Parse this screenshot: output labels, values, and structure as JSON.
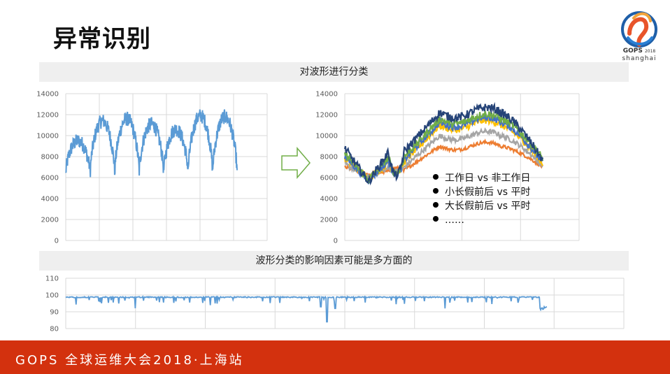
{
  "slide": {
    "title": "异常识别",
    "logo": {
      "brand": "GOPS",
      "year": "2018",
      "city": "shanghai"
    },
    "band_top": "对波形进行分类",
    "band_bottom": "波形分类的影响因素可能是多方面的",
    "footer": "GOPS 全球运维大会2018·上海站",
    "colors": {
      "footer_bg": "#d3310e",
      "series_blue": "#5b9bd5",
      "arrow": "#70ad47"
    }
  },
  "chart_data": [
    {
      "type": "line",
      "title": "",
      "xlabel": "",
      "ylabel": "",
      "ylim": [
        0,
        14000
      ],
      "yticks": [
        "0",
        "2000",
        "4000",
        "6000",
        "8000",
        "10000",
        "12000",
        "14000"
      ],
      "grid": true,
      "series": [
        {
          "color": "#5b9bd5",
          "description_values": {
            "cycles": 7,
            "baseline_range": [
              5800,
              7500
            ],
            "peaks": [
              10400,
              12300,
              12500,
              12000,
              11500,
              12800,
              12700
            ]
          }
        }
      ]
    },
    {
      "type": "line",
      "title": "",
      "xlabel": "",
      "ylabel": "",
      "ylim": [
        0,
        14000
      ],
      "yticks": [
        "0",
        "2000",
        "4000",
        "6000",
        "8000",
        "10000",
        "12000",
        "14000"
      ],
      "grid": true,
      "series": [
        {
          "color": "#264478",
          "start": 8800,
          "dip": 5600,
          "peak": 12200,
          "end": 7600
        },
        {
          "color": "#70ad47",
          "start": 8300,
          "dip": 5800,
          "peak": 11600,
          "end": 7800
        },
        {
          "color": "#4472c4",
          "start": 8000,
          "dip": 5700,
          "peak": 11300,
          "end": 7400
        },
        {
          "color": "#ffc000",
          "start": 7800,
          "dip": 5900,
          "peak": 11000,
          "end": 7300
        },
        {
          "color": "#a5a5a5",
          "start": 7300,
          "dip": 6000,
          "peak": 10000,
          "end": 7100
        },
        {
          "color": "#ed7d31",
          "start": 7000,
          "dip": 6300,
          "peak": 9000,
          "end": 7000
        }
      ],
      "legend_notes": [
        "工作日 vs 非工作日",
        "小长假前后 vs 平时",
        "大长假前后 vs 平时",
        "……"
      ]
    },
    {
      "type": "line",
      "title": "",
      "xlabel": "",
      "ylabel": "",
      "ylim": [
        80,
        110
      ],
      "yticks": [
        "80",
        "90",
        "100",
        "110"
      ],
      "grid": true,
      "series": [
        {
          "color": "#5b9bd5",
          "baseline": 99,
          "min": 84,
          "end": 91
        }
      ]
    }
  ]
}
